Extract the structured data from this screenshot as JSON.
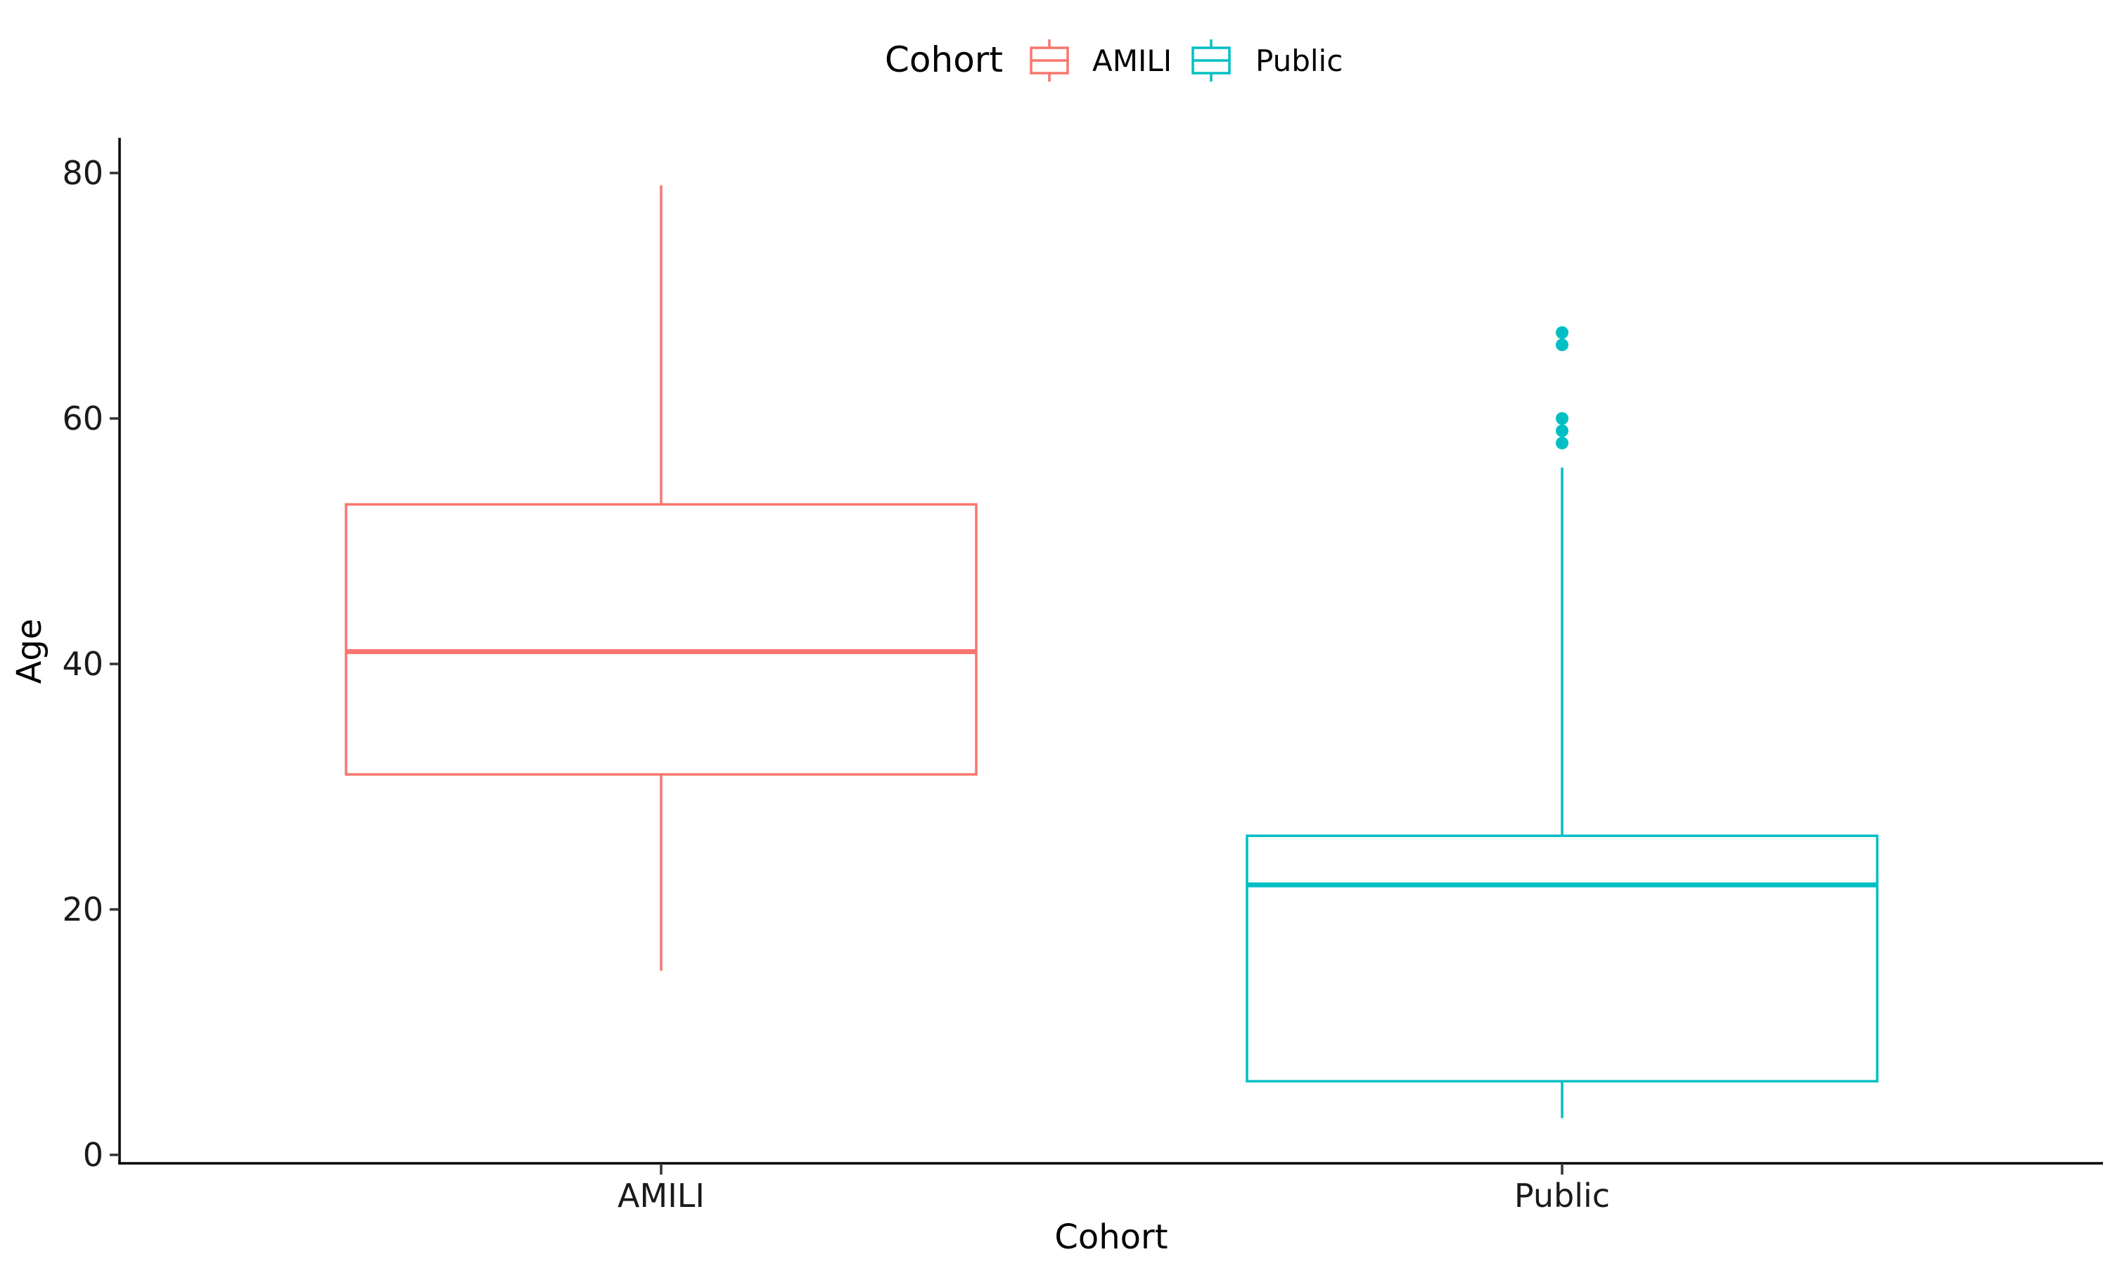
{
  "chart_data": {
    "type": "box",
    "xlabel": "Cohort",
    "ylabel": "Age",
    "ylim": [
      -1,
      83
    ],
    "yticks": [
      0,
      20,
      40,
      60,
      80
    ],
    "categories": [
      "AMILI",
      "Public"
    ],
    "legend": {
      "title": "Cohort",
      "position": "top",
      "entries": [
        "AMILI",
        "Public"
      ]
    },
    "grid": false,
    "series": [
      {
        "name": "AMILI",
        "color": "#F8766D",
        "whisker_low": 15,
        "q1": 31,
        "median": 41,
        "q3": 53,
        "whisker_high": 79,
        "outliers": []
      },
      {
        "name": "Public",
        "color": "#00BFC4",
        "whisker_low": 3,
        "q1": 6,
        "median": 22,
        "q3": 26,
        "whisker_high": 56,
        "outliers": [
          58,
          59,
          60,
          66,
          67
        ]
      }
    ]
  }
}
